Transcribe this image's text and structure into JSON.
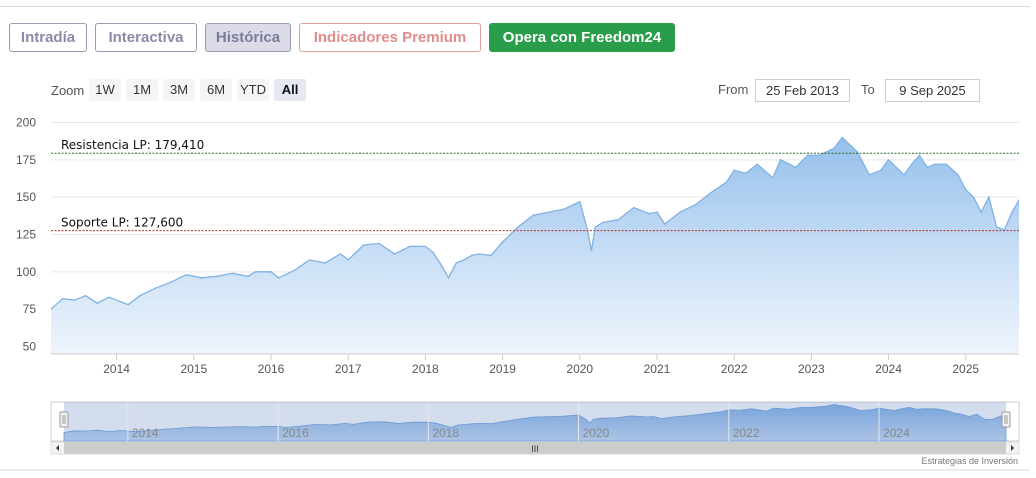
{
  "tabs": [
    {
      "label": "Intradía"
    },
    {
      "label": "Interactiva"
    },
    {
      "label": "Histórica"
    },
    {
      "label": "Indicadores Premium"
    },
    {
      "label": "Opera con Freedom24"
    }
  ],
  "zoom": {
    "label": "Zoom",
    "buttons": [
      "1W",
      "1M",
      "3M",
      "6M",
      "YTD",
      "All"
    ],
    "selected": "All"
  },
  "range": {
    "from_label": "From",
    "from_value": "25 Feb 2013",
    "to_label": "To",
    "to_value": "9 Sep 2025"
  },
  "colors": {
    "series_line": "#7fb2e5",
    "series_fill_top": "#8ebcea",
    "resistance_line": "#2e6b2e",
    "support_line": "#b03030",
    "cta_green": "#2a9d4a"
  },
  "chart_data": {
    "type": "area",
    "xlim": [
      2013.15,
      2025.69
    ],
    "ylim": [
      45,
      205
    ],
    "y_ticks": [
      50,
      75,
      100,
      125,
      150,
      175,
      200
    ],
    "x_ticks": [
      2014,
      2015,
      2016,
      2017,
      2018,
      2019,
      2020,
      2021,
      2022,
      2023,
      2024,
      2025
    ],
    "grid": true,
    "series": [
      {
        "x": [
          2013.15,
          2013.3,
          2013.45,
          2013.6,
          2013.75,
          2013.9,
          2014.05,
          2014.15,
          2014.3,
          2014.5,
          2014.7,
          2014.9,
          2015.1,
          2015.3,
          2015.5,
          2015.7,
          2015.8,
          2016.0,
          2016.1,
          2016.3,
          2016.5,
          2016.7,
          2016.9,
          2017.0,
          2017.2,
          2017.4,
          2017.6,
          2017.8,
          2018.0,
          2018.1,
          2018.2,
          2018.3,
          2018.4,
          2018.5,
          2018.6,
          2018.7,
          2018.85,
          2019.0,
          2019.2,
          2019.4,
          2019.6,
          2019.8,
          2020.0,
          2020.1,
          2020.15,
          2020.2,
          2020.3,
          2020.5,
          2020.7,
          2020.9,
          2021.0,
          2021.1,
          2021.3,
          2021.5,
          2021.7,
          2021.9,
          2022.0,
          2022.15,
          2022.3,
          2022.5,
          2022.6,
          2022.8,
          2022.95,
          2023.1,
          2023.3,
          2023.4,
          2023.5,
          2023.6,
          2023.75,
          2023.9,
          2024.0,
          2024.2,
          2024.3,
          2024.4,
          2024.5,
          2024.6,
          2024.75,
          2024.9,
          2025.0,
          2025.1,
          2025.2,
          2025.3,
          2025.4,
          2025.5,
          2025.6,
          2025.69
        ],
        "values": [
          75,
          82,
          81,
          84,
          79,
          83,
          80,
          78,
          84,
          89,
          93,
          98,
          96,
          97,
          99,
          97,
          100,
          100,
          96,
          101,
          108,
          106,
          112,
          108,
          118,
          119,
          112,
          117,
          117,
          113,
          105,
          96,
          106,
          108,
          111,
          112,
          111,
          120,
          130,
          138,
          140,
          142,
          147,
          128,
          114,
          130,
          133,
          135,
          143,
          139,
          140,
          132,
          140,
          145,
          153,
          160,
          168,
          166,
          172,
          163,
          175,
          170,
          178,
          178,
          183,
          190,
          185,
          180,
          165,
          168,
          175,
          165,
          172,
          178,
          170,
          172,
          172,
          165,
          155,
          150,
          140,
          150,
          130,
          128,
          140,
          148
        ],
        "name": ""
      }
    ],
    "annotations": [
      {
        "label": "Resistencia LP: 179,410",
        "value": 179.41
      },
      {
        "label": "Soporte LP: 127,600",
        "value": 127.6
      }
    ]
  },
  "navigator": {
    "year_labels": [
      "2014",
      "2016",
      "2018",
      "2020",
      "2022",
      "2024"
    ],
    "scrollbar_grip": "III"
  },
  "watermark": "Estrategias de Inversión"
}
